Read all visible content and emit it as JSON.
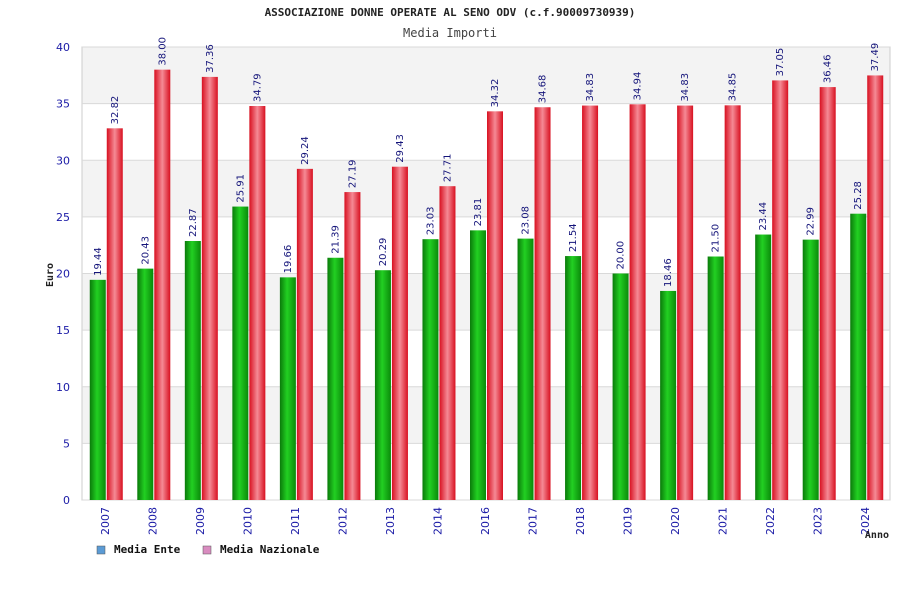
{
  "chart_data": {
    "type": "bar",
    "title": "ASSOCIAZIONE DONNE OPERATE AL SENO ODV (c.f.90009730939)",
    "subtitle": "Media Importi",
    "xlabel": "Anno",
    "ylabel": "Euro",
    "ylim": [
      0,
      40
    ],
    "yticks": [
      0,
      5,
      10,
      15,
      20,
      25,
      30,
      35,
      40
    ],
    "grid": true,
    "legend_position": "bottom-left",
    "categories": [
      "2007",
      "2008",
      "2009",
      "2010",
      "2011",
      "2012",
      "2013",
      "2014",
      "2016",
      "2017",
      "2018",
      "2019",
      "2020",
      "2021",
      "2022",
      "2023",
      "2024"
    ],
    "series": [
      {
        "name": "Media Ente",
        "legend_color": "#5b9bd5",
        "bar_color": "#11a211",
        "values": [
          19.44,
          20.43,
          22.87,
          25.91,
          19.66,
          21.39,
          20.29,
          23.03,
          23.81,
          23.08,
          21.54,
          20.0,
          18.46,
          21.5,
          23.44,
          22.99,
          25.28
        ],
        "labels": [
          "19.44",
          "20.43",
          "22.87",
          "25.91",
          "19.66",
          "21.39",
          "20.29",
          "23.03",
          "23.81",
          "23.08",
          "21.54",
          "20.00",
          "18.46",
          "21.50",
          "23.44",
          "22.99",
          "25.28"
        ]
      },
      {
        "name": "Media Nazionale",
        "legend_color": "#d98cc0",
        "bar_color": "#e8202a",
        "values": [
          32.82,
          38.0,
          37.36,
          34.79,
          29.24,
          27.19,
          29.43,
          27.71,
          34.32,
          34.68,
          34.83,
          34.94,
          34.83,
          34.85,
          37.05,
          36.46,
          37.49
        ],
        "labels": [
          "32.82",
          "38.00",
          "37.36",
          "34.79",
          "29.24",
          "27.19",
          "29.43",
          "27.71",
          "34.32",
          "34.68",
          "34.83",
          "34.94",
          "34.83",
          "34.85",
          "37.05",
          "36.46",
          "37.49"
        ]
      }
    ]
  }
}
